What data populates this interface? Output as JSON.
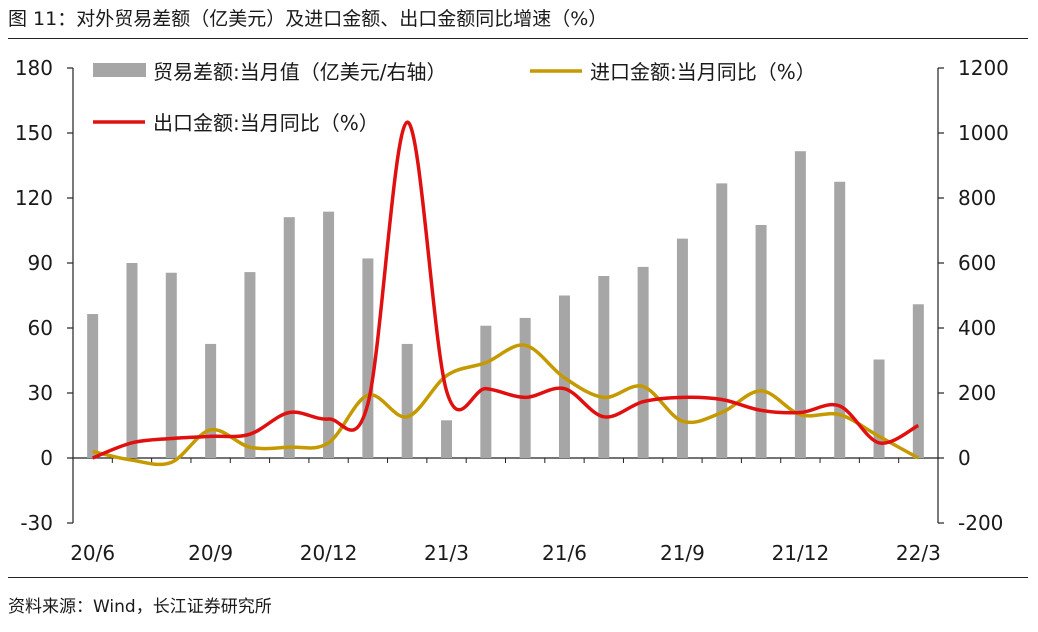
{
  "figure_title": "图 11：对外贸易差额（亿美元）及进口金额、出口金额同比增速（%）",
  "source": "资料来源：Wind，长江证券研究所",
  "colors": {
    "bar": "#a6a6a6",
    "import_line": "#c49a00",
    "export_line": "#e01010",
    "axis": "#222222",
    "text": "#1a1a1a"
  },
  "chart_data": {
    "type": "bar+line",
    "x_tick_labels": [
      "20/6",
      "20/9",
      "20/12",
      "21/3",
      "21/6",
      "21/9",
      "21/12",
      "22/3"
    ],
    "x_tick_index": [
      0,
      3,
      6,
      9,
      12,
      15,
      18,
      21
    ],
    "y_left": {
      "ticks": [
        180,
        150,
        120,
        90,
        60,
        30,
        0,
        -30
      ],
      "range": [
        -30,
        180
      ]
    },
    "y_right": {
      "ticks": [
        1200,
        1000,
        800,
        600,
        400,
        200,
        0,
        -200
      ],
      "range": [
        -200,
        1200
      ]
    },
    "legend": [
      "贸易差额:当月值（亿美元/右轴）",
      "进口金额:当月同比（%）",
      "出口金额:当月同比（%）"
    ],
    "categories": [
      "2020-06",
      "2020-07",
      "2020-08",
      "2020-09",
      "2020-10",
      "2020-11",
      "2020-12",
      "2021-01",
      "2021-02",
      "2021-03",
      "2021-04",
      "2021-05",
      "2021-06",
      "2021-07",
      "2021-08",
      "2021-09",
      "2021-10",
      "2021-11",
      "2021-12",
      "2022-01",
      "2022-02",
      "2022-03"
    ],
    "series": [
      {
        "name": "贸易差额:当月值（亿美元/右轴）",
        "type": "bar",
        "axis": "right",
        "values": [
          443,
          600,
          570,
          351,
          572,
          741,
          758,
          614,
          351,
          116,
          407,
          431,
          500,
          560,
          588,
          675,
          845,
          717,
          944,
          850,
          303,
          473
        ]
      },
      {
        "name": "进口金额:当月同比（%）",
        "type": "line",
        "axis": "left",
        "values": [
          3,
          -1,
          -2,
          13,
          5,
          5,
          7,
          29,
          19,
          38,
          44,
          52,
          37,
          28,
          33,
          17,
          21,
          31,
          20,
          20,
          10,
          0
        ]
      },
      {
        "name": "出口金额:当月同比（%）",
        "type": "line",
        "axis": "left",
        "values": [
          0,
          7,
          9,
          10,
          11,
          21,
          18,
          25,
          155,
          31,
          32,
          28,
          32,
          19,
          26,
          28,
          27,
          22,
          21,
          24,
          7,
          15
        ]
      }
    ]
  }
}
